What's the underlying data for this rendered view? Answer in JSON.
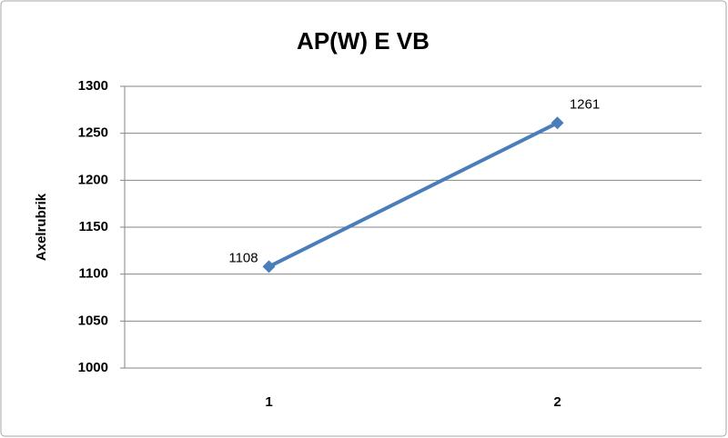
{
  "chart_data": {
    "type": "line",
    "title": "AP(W) E VB",
    "y_label": "Axelrubrik",
    "categories": [
      "1",
      "2"
    ],
    "values": [
      1108,
      1261
    ],
    "color": "#4a7ebb",
    "ylim": [
      1000,
      1300
    ],
    "yticks": [
      1000,
      1050,
      1100,
      1150,
      1200,
      1250,
      1300
    ],
    "grid": true
  }
}
